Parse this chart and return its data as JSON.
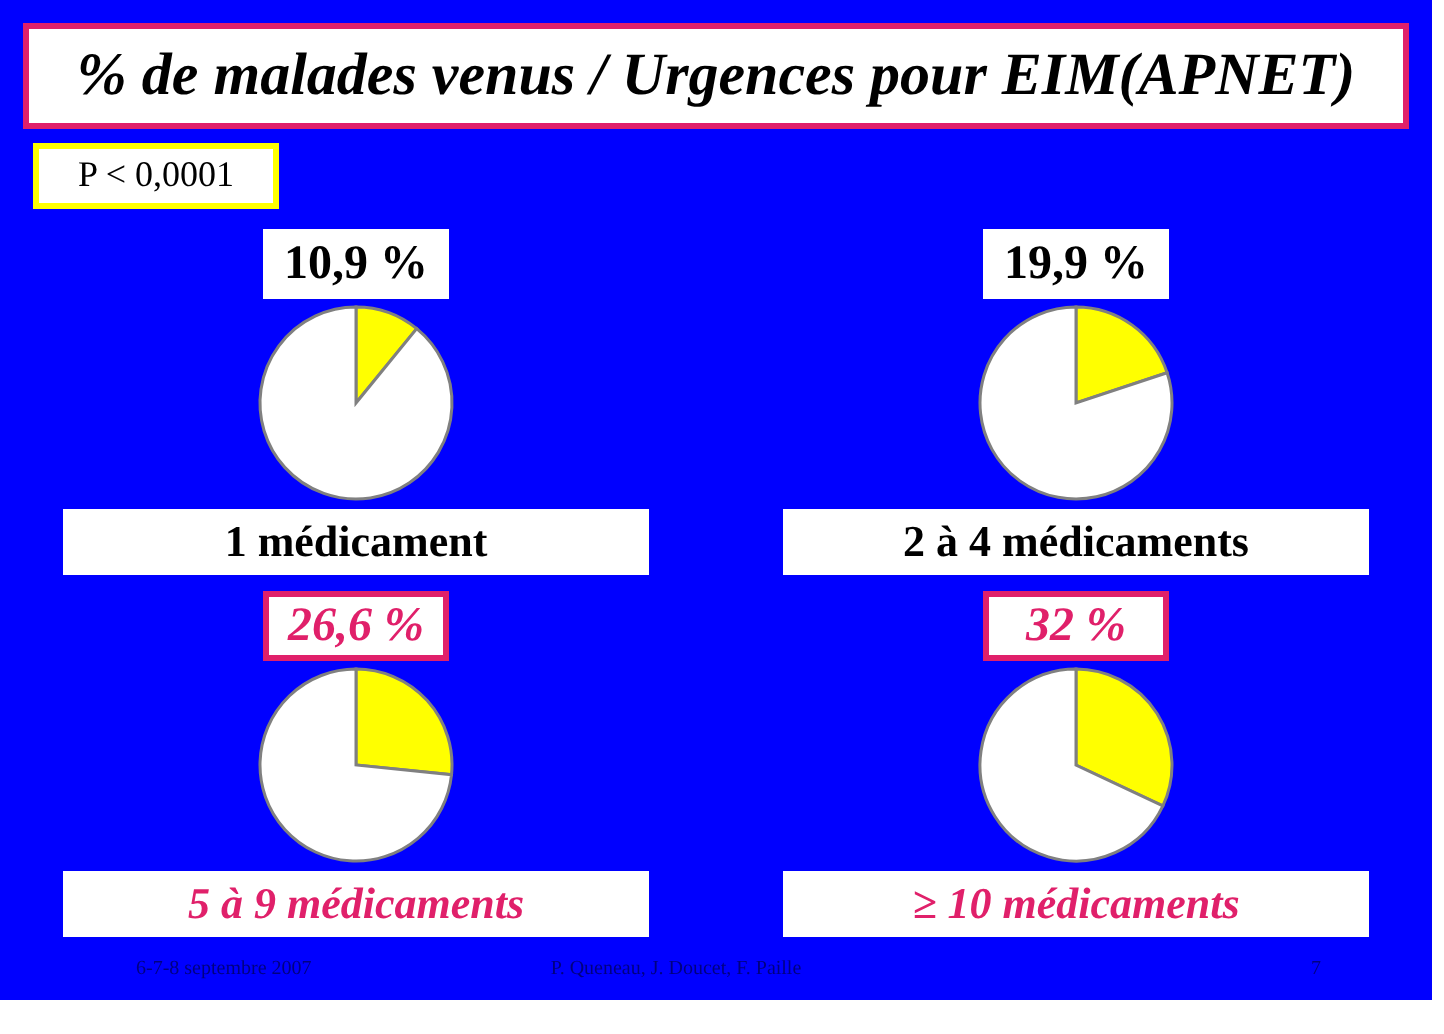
{
  "chart_data": [
    {
      "type": "other",
      "title": "% de malades venus / Urgences pour EIM(APNET)",
      "annotations": [
        "P < 0,0001",
        "6-7-8 septembre 2007",
        "P. Queneau, J. Doucet, F. Paille",
        "7"
      ]
    },
    {
      "type": "pie",
      "title": "1 médicament",
      "categories": [
        null,
        null
      ],
      "values": [
        10.9,
        89.1
      ],
      "colors": [
        "#ffff00",
        "#ffffff"
      ],
      "value_labels": [
        "10,9 %",
        null
      ]
    },
    {
      "type": "pie",
      "title": "2 à 4 médicaments",
      "categories": [
        null,
        null
      ],
      "values": [
        19.9,
        80.1
      ],
      "colors": [
        "#ffff00",
        "#ffffff"
      ],
      "value_labels": [
        "19,9 %",
        null
      ]
    },
    {
      "type": "pie",
      "title": "5 à 9 médicaments",
      "categories": [
        null,
        null
      ],
      "values": [
        26.6,
        73.4
      ],
      "colors": [
        "#ffff00",
        "#ffffff"
      ],
      "value_labels": [
        "26,6 %",
        null
      ]
    },
    {
      "type": "pie",
      "title": "≥ 10 médicaments",
      "categories": [
        null,
        null
      ],
      "values": [
        32,
        68
      ],
      "colors": [
        "#ffff00",
        "#ffffff"
      ],
      "value_labels": [
        "32 %",
        null
      ]
    }
  ]
}
